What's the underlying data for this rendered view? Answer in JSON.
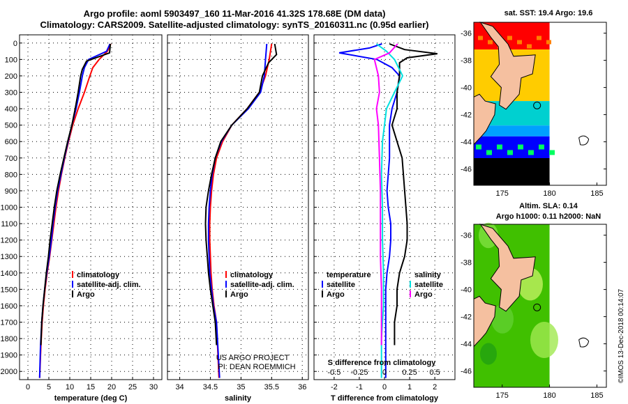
{
  "header": {
    "title_line1": "Argo profile: aoml 5903497_160 11-Mar-2016 41.32S 178.68E (DM data)",
    "title_line2": "Climatology: CARS2009. Satellite-adjusted climatology: synTS_20160311.nc (0.95d earlier)"
  },
  "maps": {
    "sst_title": "sat. SST: 19.4 Argo: 19.6",
    "sla_title": "Altim. SLA: 0.14",
    "sla_subtitle": "Argo h1000: 0.11 h2000: NaN",
    "lat_ticks": [
      "-36",
      "-38",
      "-40",
      "-42",
      "-44",
      "-46"
    ],
    "lon_ticks": [
      "175",
      "180",
      "185"
    ],
    "credit": "©IMOS 13-Dec-2018 00:14:07",
    "colors": {
      "land": "#f5c0a0",
      "sst_warm": "#ff0000",
      "sst_mid": "#ffcc00",
      "sst_cool": "#00d0d0",
      "sst_cold": "#0000ff",
      "sla_green": "#40c000"
    }
  },
  "watermark": {
    "line1": "US ARGO PROJECT",
    "line2": "PI: DEAN ROEMMICH"
  },
  "colors": {
    "climatology": "#ff0000",
    "satellite": "#0000ff",
    "argo": "#000000",
    "s_satellite": "#00e0e0",
    "s_argo": "#ff00ff"
  },
  "chart_data": [
    {
      "type": "line",
      "xlabel": "temperature (deg C)",
      "x_ticks": [
        "0",
        "5",
        "10",
        "15",
        "20",
        "25",
        "30"
      ],
      "y_ticks": [
        "0",
        "100",
        "200",
        "300",
        "400",
        "500",
        "600",
        "700",
        "800",
        "900",
        "1000",
        "1100",
        "1200",
        "1300",
        "1400",
        "1500",
        "1600",
        "1700",
        "1800",
        "1900",
        "2000"
      ],
      "xlim": [
        -2,
        32
      ],
      "ylim": [
        2050,
        -50
      ],
      "legend": [
        "climatology",
        "satellite-adj. clim.",
        "Argo"
      ],
      "series": [
        {
          "name": "climatology",
          "x": [
            19.8,
            19.0,
            17.0,
            15.5,
            14.8,
            13.5,
            12.0,
            10.7,
            9.7,
            8.8,
            8.0,
            7.3,
            6.7,
            6.2,
            5.7,
            5.2,
            4.6,
            4.1,
            3.7,
            3.4,
            3.1,
            2.8
          ],
          "y": [
            5,
            50,
            100,
            150,
            200,
            300,
            400,
            500,
            600,
            700,
            800,
            900,
            1000,
            1100,
            1200,
            1300,
            1400,
            1500,
            1600,
            1700,
            1850,
            2040
          ]
        },
        {
          "name": "satellite-adj. clim.",
          "x": [
            19.6,
            18.8,
            14.5,
            13.5,
            13.0,
            12.3,
            11.5,
            10.5,
            9.6,
            8.7,
            7.9,
            7.1,
            6.5,
            6.0,
            5.6,
            5.1,
            4.5,
            4.0,
            3.6,
            3.3,
            3.0,
            2.8
          ],
          "y": [
            5,
            50,
            100,
            150,
            200,
            300,
            400,
            500,
            600,
            700,
            800,
            900,
            1000,
            1100,
            1200,
            1300,
            1400,
            1500,
            1600,
            1700,
            1850,
            2040
          ]
        },
        {
          "name": "Argo",
          "x": [
            19.7,
            19.5,
            14.0,
            13.0,
            12.6,
            12.0,
            11.3,
            10.5,
            9.5,
            8.6,
            7.7,
            6.9,
            6.3,
            5.8,
            5.3,
            4.9,
            4.4,
            4.0,
            3.6,
            3.3,
            3.1
          ],
          "y": [
            5,
            60,
            110,
            160,
            200,
            300,
            400,
            500,
            600,
            700,
            800,
            900,
            1000,
            1100,
            1200,
            1300,
            1400,
            1500,
            1600,
            1700,
            1840
          ]
        }
      ]
    },
    {
      "type": "line",
      "xlabel": "salinity",
      "x_ticks": [
        "34",
        "34.5",
        "35",
        "35.5",
        "36"
      ],
      "xlim": [
        33.8,
        36.1
      ],
      "ylim": [
        2050,
        -50
      ],
      "legend": [
        "climatology",
        "satellite-adj. clim.",
        "Argo"
      ],
      "series": [
        {
          "name": "climatology",
          "x": [
            35.5,
            35.46,
            35.4,
            35.3,
            35.1,
            34.85,
            34.7,
            34.6,
            34.55,
            34.52,
            34.5,
            34.49,
            34.49,
            34.5,
            34.51,
            34.53,
            34.56,
            34.6,
            34.64
          ],
          "y": [
            5,
            100,
            200,
            300,
            400,
            500,
            600,
            700,
            800,
            900,
            1000,
            1100,
            1200,
            1300,
            1400,
            1500,
            1600,
            1700,
            2040
          ]
        },
        {
          "name": "satellite-adj. clim.",
          "x": [
            35.42,
            35.4,
            35.38,
            35.32,
            35.12,
            34.85,
            34.68,
            34.58,
            34.53,
            34.5,
            34.48,
            34.47,
            34.47,
            34.48,
            34.49,
            34.52,
            34.55,
            34.6,
            34.65
          ],
          "y": [
            5,
            100,
            200,
            300,
            400,
            500,
            600,
            700,
            800,
            900,
            1000,
            1100,
            1200,
            1300,
            1400,
            1500,
            1600,
            1700,
            2040
          ]
        },
        {
          "name": "Argo",
          "x": [
            35.55,
            35.58,
            35.45,
            35.35,
            35.3,
            35.1,
            34.85,
            34.67,
            34.58,
            34.52,
            34.47,
            34.43,
            34.42,
            34.43,
            34.45,
            34.47,
            34.5,
            34.54,
            34.58,
            34.6
          ],
          "y": [
            5,
            70,
            120,
            200,
            300,
            400,
            500,
            600,
            700,
            800,
            900,
            1000,
            1100,
            1200,
            1300,
            1400,
            1500,
            1600,
            1700,
            1840
          ]
        }
      ]
    },
    {
      "type": "line",
      "xlabel": "T difference from climatology",
      "x2label": "S difference from climatology",
      "x_ticks": [
        "-2",
        "-1",
        "0",
        "1",
        "2"
      ],
      "x2_ticks": [
        "-0.5",
        "-0.25",
        "0",
        "0.25",
        "0.5"
      ],
      "xlim": [
        -2.8,
        2.8
      ],
      "ylim": [
        2050,
        -50
      ],
      "legend_left": [
        "temperature",
        "satellite",
        "Argo"
      ],
      "legend_right": [
        "salinity",
        "satellite",
        "Argo"
      ],
      "series": [
        {
          "name": "satellite",
          "x": [
            -0.1,
            -0.6,
            -1.8,
            -0.3,
            0.3,
            0.6,
            0.5,
            0.3,
            0.2,
            0.2,
            0.1,
            0.15,
            0.25,
            0.25,
            0.2,
            0.1,
            0.05,
            0.05,
            0.05,
            0.05
          ],
          "y": [
            5,
            30,
            60,
            100,
            150,
            200,
            300,
            400,
            500,
            700,
            900,
            1000,
            1100,
            1200,
            1300,
            1400,
            1500,
            1600,
            1800,
            2040
          ]
        },
        {
          "name": "Argo",
          "x": [
            0.2,
            0.8,
            2.1,
            0.9,
            0.6,
            0.6,
            0.5,
            0.5,
            0.3,
            0.5,
            0.7,
            0.8,
            0.9,
            0.9,
            0.8,
            0.6,
            0.5,
            0.5,
            0.4,
            0.4
          ],
          "y": [
            5,
            40,
            65,
            90,
            120,
            200,
            300,
            400,
            500,
            600,
            700,
            900,
            1100,
            1200,
            1300,
            1400,
            1500,
            1600,
            1700,
            1840
          ]
        },
        {
          "name": "salinity satellite",
          "x": [
            -0.08,
            0.02,
            0.1,
            0.18,
            0.1,
            0.02,
            0.0,
            -0.02,
            -0.03,
            -0.02,
            -0.02,
            -0.01,
            -0.01,
            -0.01,
            -0.02,
            -0.03,
            -0.03
          ],
          "y": [
            5,
            50,
            100,
            200,
            300,
            400,
            500,
            600,
            800,
            1000,
            1200,
            1400,
            1500,
            1600,
            1700,
            1800,
            2040
          ]
        },
        {
          "name": "salinity Argo",
          "x": [
            0.13,
            0.05,
            -0.1,
            -0.06,
            -0.05,
            -0.08,
            -0.06,
            -0.05,
            -0.04,
            -0.04,
            -0.04,
            -0.03,
            -0.03,
            -0.03
          ],
          "y": [
            5,
            60,
            100,
            200,
            300,
            400,
            500,
            700,
            900,
            1100,
            1300,
            1500,
            1700,
            1840
          ]
        }
      ]
    }
  ]
}
